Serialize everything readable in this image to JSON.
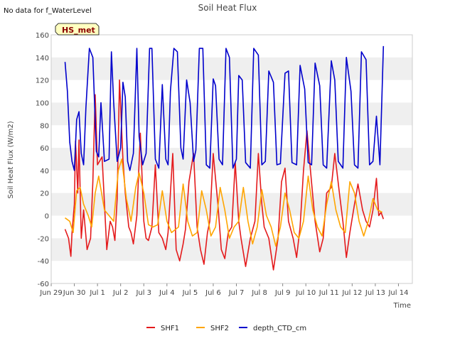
{
  "note": "No data for f_WaterLevel",
  "badge": "HS_met",
  "colors": {
    "SHF1": "#e41a1c",
    "SHF2": "#ffa500",
    "depth_CTD_cm": "#0000cc",
    "band": "#efefef",
    "badge_fill": "#ffffc0"
  },
  "chart_data": {
    "type": "line",
    "title": "Soil Heat Flux",
    "xlabel": "Time",
    "ylabel": "Soil Heat Flux (W/m2)",
    "xlim": [
      0,
      15.6
    ],
    "ylim": [
      -60,
      160
    ],
    "yticks": [
      -60,
      -40,
      -20,
      0,
      20,
      40,
      60,
      80,
      100,
      120,
      140,
      160
    ],
    "xticks": [
      {
        "day": 0,
        "label": "Jun 29"
      },
      {
        "day": 1,
        "label": "Jun 30"
      },
      {
        "day": 2,
        "label": "Jul 1"
      },
      {
        "day": 3,
        "label": "Jul 2"
      },
      {
        "day": 4,
        "label": "Jul 3"
      },
      {
        "day": 5,
        "label": "Jul 4"
      },
      {
        "day": 6,
        "label": "Jul 5"
      },
      {
        "day": 7,
        "label": "Jul 6"
      },
      {
        "day": 8,
        "label": "Jul 7"
      },
      {
        "day": 9,
        "label": "Jul 8"
      },
      {
        "day": 10,
        "label": "Jul 9"
      },
      {
        "day": 11,
        "label": "Jul 10"
      },
      {
        "day": 12,
        "label": "Jul 11"
      },
      {
        "day": 13,
        "label": "Jul 12"
      },
      {
        "day": 14,
        "label": "Jul 13"
      },
      {
        "day": 15,
        "label": "Jul 14"
      }
    ],
    "legend": [
      "SHF1",
      "SHF2",
      "depth_CTD_cm"
    ],
    "series": [
      {
        "name": "SHF1",
        "x": [
          0.6,
          0.75,
          0.85,
          0.9,
          1.0,
          1.05,
          1.15,
          1.2,
          1.3,
          1.4,
          1.55,
          1.7,
          1.8,
          1.9,
          2.0,
          2.2,
          2.4,
          2.55,
          2.65,
          2.75,
          2.85,
          2.95,
          3.1,
          3.2,
          3.35,
          3.45,
          3.55,
          3.7,
          3.85,
          4.0,
          4.1,
          4.2,
          4.35,
          4.5,
          4.65,
          4.8,
          4.95,
          5.05,
          5.25,
          5.4,
          5.55,
          5.7,
          5.8,
          5.95,
          6.15,
          6.3,
          6.45,
          6.6,
          6.75,
          6.85,
          7.0,
          7.2,
          7.35,
          7.5,
          7.65,
          7.8,
          7.95,
          8.1,
          8.2,
          8.4,
          8.6,
          8.8,
          8.95,
          9.1,
          9.2,
          9.4,
          9.6,
          9.8,
          9.95,
          10.1,
          10.25,
          10.45,
          10.6,
          10.75,
          10.9,
          11.05,
          11.2,
          11.4,
          11.6,
          11.75,
          11.9,
          12.1,
          12.25,
          12.45,
          12.6,
          12.75,
          12.9,
          13.1,
          13.25,
          13.45,
          13.6,
          13.75,
          13.9,
          14.05,
          14.15,
          14.25,
          14.35
        ],
        "y": [
          -12,
          -20,
          -36,
          -15,
          10,
          66,
          20,
          67,
          -20,
          5,
          -30,
          -20,
          30,
          107,
          45,
          52,
          -30,
          -5,
          -10,
          -22,
          15,
          120,
          50,
          20,
          -10,
          -15,
          -25,
          0,
          73,
          -5,
          -20,
          -22,
          -10,
          45,
          -15,
          -20,
          -30,
          -15,
          55,
          -30,
          -40,
          -25,
          -12,
          30,
          55,
          -10,
          -30,
          -43,
          -15,
          -5,
          55,
          10,
          -30,
          -38,
          -15,
          -10,
          47,
          -5,
          -20,
          -45,
          -20,
          -5,
          55,
          10,
          -10,
          -20,
          -48,
          -20,
          30,
          42,
          -5,
          -20,
          -37,
          -10,
          40,
          75,
          40,
          -5,
          -32,
          -20,
          20,
          25,
          55,
          20,
          -5,
          -37,
          -15,
          10,
          28,
          5,
          -5,
          -10,
          5,
          33,
          0,
          3,
          -3
        ]
      },
      {
        "name": "SHF2",
        "x": [
          0.6,
          0.8,
          0.95,
          1.1,
          1.25,
          1.4,
          1.6,
          1.75,
          1.9,
          2.05,
          2.3,
          2.5,
          2.7,
          2.9,
          3.05,
          3.25,
          3.45,
          3.65,
          3.8,
          4.0,
          4.2,
          4.4,
          4.6,
          4.8,
          5.0,
          5.2,
          5.5,
          5.7,
          5.9,
          6.1,
          6.3,
          6.5,
          6.7,
          6.9,
          7.1,
          7.3,
          7.5,
          7.7,
          7.9,
          8.1,
          8.3,
          8.5,
          8.7,
          8.9,
          9.1,
          9.3,
          9.5,
          9.7,
          9.9,
          10.1,
          10.3,
          10.5,
          10.7,
          10.9,
          11.1,
          11.3,
          11.5,
          11.7,
          11.9,
          12.1,
          12.3,
          12.5,
          12.7,
          12.9,
          13.1,
          13.3,
          13.5,
          13.7,
          13.9,
          14.1,
          14.3
        ],
        "y": [
          -2,
          -5,
          -15,
          22,
          25,
          10,
          0,
          -10,
          20,
          35,
          5,
          0,
          -5,
          40,
          50,
          15,
          -5,
          25,
          38,
          20,
          -8,
          -10,
          -8,
          22,
          -5,
          -15,
          -10,
          28,
          -5,
          -18,
          -15,
          22,
          5,
          -18,
          -10,
          25,
          5,
          -20,
          -10,
          -5,
          25,
          -5,
          -25,
          -10,
          23,
          0,
          -10,
          -27,
          -10,
          20,
          5,
          -15,
          -20,
          -5,
          35,
          5,
          -10,
          -18,
          10,
          30,
          5,
          -10,
          -15,
          30,
          20,
          -5,
          -18,
          -5,
          15,
          5,
          3
        ]
      },
      {
        "name": "depth_CTD_cm",
        "x": [
          0.6,
          0.7,
          0.8,
          0.9,
          1.0,
          1.1,
          1.2,
          1.3,
          1.4,
          1.5,
          1.65,
          1.8,
          1.95,
          2.05,
          2.15,
          2.3,
          2.5,
          2.6,
          2.7,
          2.85,
          3.0,
          3.1,
          3.2,
          3.3,
          3.4,
          3.55,
          3.7,
          3.8,
          3.95,
          4.1,
          4.25,
          4.35,
          4.5,
          4.65,
          4.8,
          4.95,
          5.05,
          5.15,
          5.3,
          5.45,
          5.6,
          5.7,
          5.85,
          6.0,
          6.15,
          6.25,
          6.4,
          6.55,
          6.7,
          6.85,
          7.0,
          7.1,
          7.25,
          7.4,
          7.55,
          7.7,
          7.85,
          8.0,
          8.1,
          8.25,
          8.4,
          8.6,
          8.75,
          8.95,
          9.1,
          9.25,
          9.4,
          9.6,
          9.75,
          9.9,
          10.1,
          10.25,
          10.4,
          10.6,
          10.75,
          10.95,
          11.1,
          11.25,
          11.4,
          11.6,
          11.75,
          11.9,
          12.1,
          12.25,
          12.4,
          12.6,
          12.75,
          12.95,
          13.1,
          13.25,
          13.4,
          13.6,
          13.75,
          13.9,
          14.05,
          14.2,
          14.35
        ],
        "y": [
          136,
          110,
          65,
          48,
          40,
          85,
          92,
          55,
          45,
          95,
          148,
          140,
          57,
          52,
          100,
          48,
          50,
          145,
          100,
          48,
          60,
          118,
          105,
          48,
          40,
          55,
          148,
          70,
          45,
          55,
          148,
          148,
          50,
          42,
          116,
          50,
          45,
          110,
          148,
          145,
          60,
          50,
          120,
          100,
          48,
          58,
          148,
          148,
          45,
          42,
          121,
          115,
          50,
          45,
          148,
          140,
          42,
          50,
          124,
          120,
          47,
          42,
          148,
          142,
          45,
          48,
          128,
          118,
          45,
          46,
          126,
          128,
          47,
          45,
          133,
          112,
          47,
          45,
          135,
          115,
          45,
          42,
          137,
          120,
          48,
          42,
          140,
          110,
          45,
          42,
          145,
          138,
          45,
          48,
          88,
          45,
          150
        ]
      }
    ]
  }
}
